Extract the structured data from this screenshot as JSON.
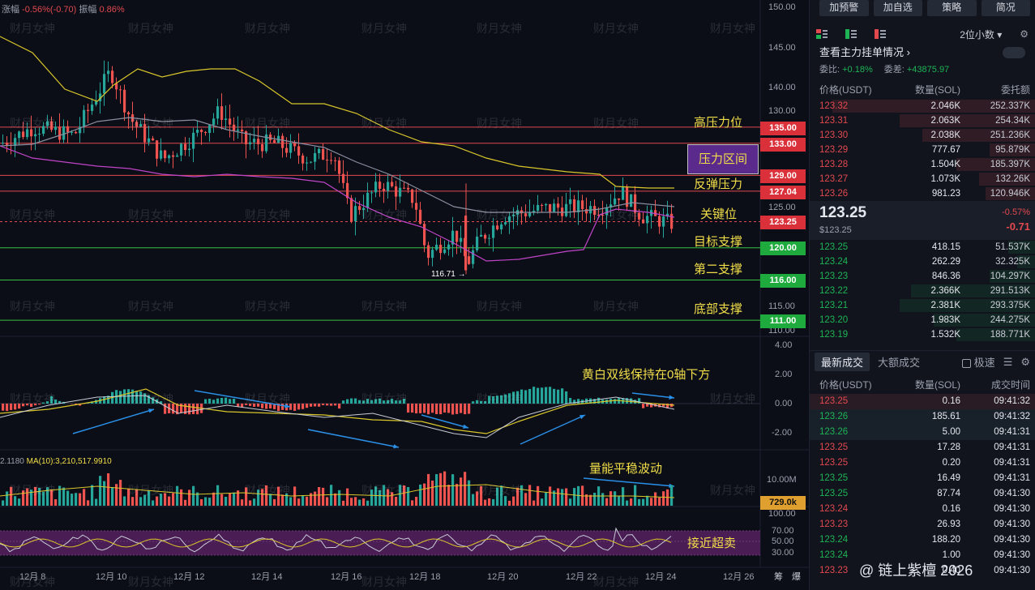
{
  "header": {
    "change_label": "涨幅",
    "change_value": "-0.56%(-0.70)",
    "amplitude_label": "振幅",
    "amplitude_value": "0.86%"
  },
  "price_axis": [
    "150.00",
    "145.00",
    "140.00",
    "130.00",
    "125.00",
    "115.00",
    "110.00"
  ],
  "macd_axis": [
    "4.00",
    "2.00",
    "0.00",
    "-2.00"
  ],
  "vol_axis": [
    "10.00M"
  ],
  "rsi_axis": [
    "100.00",
    "70.00",
    "50.00",
    "30.00"
  ],
  "price_tags": [
    {
      "label": "135.00",
      "color": "red"
    },
    {
      "label": "133.00",
      "color": "red"
    },
    {
      "label": "129.00",
      "color": "red"
    },
    {
      "label": "127.04",
      "color": "red"
    },
    {
      "label": "123.25",
      "color": "red"
    },
    {
      "label": "120.00",
      "color": "green"
    },
    {
      "label": "116.00",
      "color": "green"
    },
    {
      "label": "111.00",
      "color": "green"
    }
  ],
  "vol_tag": "729.0k",
  "annotations": {
    "high_pressure": "高压力位",
    "pressure_zone": "压力区间",
    "rebound_pressure": "反弹压力",
    "key_level": "关键位",
    "target_support": "目标支撑",
    "second_support": "第二支撑",
    "bottom_support": "底部支撑",
    "macd_note": "黄白双线保持在0轴下方",
    "volume_note": "量能平稳波动",
    "rsi_note": "接近超卖"
  },
  "low_label": "116.71 →",
  "vol_legend": {
    "prefix": "2.1180",
    "ma": "MA(10):3,210,517.9910"
  },
  "dates": [
    "12月 8",
    "12月 10",
    "12月 12",
    "12月 14",
    "12月 16",
    "12月 18",
    "12月 20",
    "12月 22",
    "12月 24",
    "12月 26"
  ],
  "axis_footer": [
    "筹",
    "爆"
  ],
  "watermark": "财月女神",
  "panel": {
    "buttons": [
      "加预警",
      "加自选",
      "策略",
      "简况"
    ],
    "decimals": "2位小数",
    "title": "查看主力挂单情况",
    "ratio_label": "委比:",
    "ratio_value": "+0.18%",
    "diff_label": "委差:",
    "diff_value": "+43875.97",
    "ob_headers": [
      "价格(USDT)",
      "数量(SOL)",
      "委托额"
    ],
    "asks": [
      {
        "price": "123.32",
        "qty": "2.046K",
        "amt": "252.337K",
        "w": 0.9
      },
      {
        "price": "123.31",
        "qty": "2.063K",
        "amt": "254.34K",
        "w": 0.6
      },
      {
        "price": "123.30",
        "qty": "2.038K",
        "amt": "251.236K",
        "w": 0.5
      },
      {
        "price": "123.29",
        "qty": "777.67",
        "amt": "95.879K",
        "w": 0.2
      },
      {
        "price": "123.28",
        "qty": "1.504K",
        "amt": "185.397K",
        "w": 0.35
      },
      {
        "price": "123.27",
        "qty": "1.073K",
        "amt": "132.26K",
        "w": 0.25
      },
      {
        "price": "123.26",
        "qty": "981.23",
        "amt": "120.946K",
        "w": 0.22
      }
    ],
    "last_price": "123.25",
    "last_usd": "$123.25",
    "change_pct": "-0.57%",
    "change_abs": "-0.71",
    "bids": [
      {
        "price": "123.25",
        "qty": "418.15",
        "amt": "51.537K",
        "w": 0.12
      },
      {
        "price": "123.24",
        "qty": "262.29",
        "amt": "32.325K",
        "w": 0.08
      },
      {
        "price": "123.23",
        "qty": "846.36",
        "amt": "104.297K",
        "w": 0.2
      },
      {
        "price": "123.22",
        "qty": "2.366K",
        "amt": "291.513K",
        "w": 0.55
      },
      {
        "price": "123.21",
        "qty": "2.381K",
        "amt": "293.375K",
        "w": 0.6
      },
      {
        "price": "123.20",
        "qty": "1.983K",
        "amt": "244.275K",
        "w": 0.45
      },
      {
        "price": "123.19",
        "qty": "1.532K",
        "amt": "188.771K",
        "w": 0.35
      }
    ],
    "tabs": [
      "最新成交",
      "大额成交"
    ],
    "extreme_label": "极速",
    "trade_headers": [
      "价格(USDT)",
      "数量(SOL)",
      "成交时间"
    ],
    "trades": [
      {
        "price": "123.25",
        "qty": "0.16",
        "time": "09:41:32",
        "side": "red",
        "hl": "hl"
      },
      {
        "price": "123.26",
        "qty": "185.61",
        "time": "09:41:32",
        "side": "green",
        "hl": "hl2"
      },
      {
        "price": "123.26",
        "qty": "5.00",
        "time": "09:41:31",
        "side": "green",
        "hl": "hl2"
      },
      {
        "price": "123.25",
        "qty": "17.28",
        "time": "09:41:31",
        "side": "red",
        "hl": ""
      },
      {
        "price": "123.25",
        "qty": "0.20",
        "time": "09:41:31",
        "side": "red",
        "hl": ""
      },
      {
        "price": "123.25",
        "qty": "16.49",
        "time": "09:41:31",
        "side": "green",
        "hl": ""
      },
      {
        "price": "123.25",
        "qty": "87.74",
        "time": "09:41:30",
        "side": "green",
        "hl": ""
      },
      {
        "price": "123.24",
        "qty": "0.16",
        "time": "09:41:30",
        "side": "red",
        "hl": ""
      },
      {
        "price": "123.23",
        "qty": "26.93",
        "time": "09:41:30",
        "side": "red",
        "hl": ""
      },
      {
        "price": "123.24",
        "qty": "188.20",
        "time": "09:41:30",
        "side": "green",
        "hl": ""
      },
      {
        "price": "123.24",
        "qty": "1.00",
        "time": "09:41:30",
        "side": "green",
        "hl": ""
      },
      {
        "price": "123.23",
        "qty": "0.40",
        "time": "09:41:30",
        "side": "red",
        "hl": ""
      }
    ]
  },
  "credit": "@ 链上紫檀 2026"
}
